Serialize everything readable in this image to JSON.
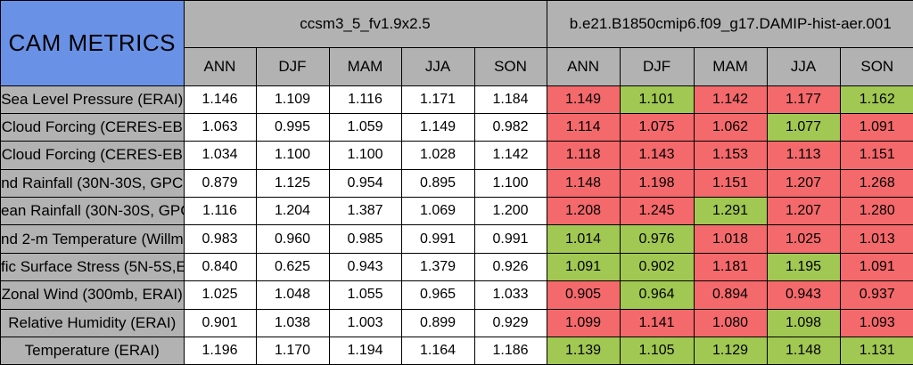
{
  "colors": {
    "title_background": "#6991E6",
    "header_background": "#B2B2B2",
    "label_background": "#B2B2B2",
    "red_cell": "#F4696B",
    "green_cell": "#A1C853",
    "plain_cell": "#FFFFFF",
    "border": "#000000"
  },
  "chart_data": {
    "type": "table",
    "title": "CAM METRICS",
    "column_groups": [
      {
        "name": "ccsm3_5_fv1.9x2.5",
        "seasons": [
          "ANN",
          "DJF",
          "MAM",
          "JJA",
          "SON"
        ],
        "cell_style": "plain"
      },
      {
        "name": "b.e21.B1850cmip6.f09_g17.DAMIP-hist-aer.001",
        "seasons": [
          "ANN",
          "DJF",
          "MAM",
          "JJA",
          "SON"
        ],
        "cell_style": "colored"
      }
    ],
    "value_precision": 3,
    "rows": [
      {
        "label": "Sea Level Pressure (ERAI)",
        "values": [
          [
            1.146,
            1.109,
            1.116,
            1.171,
            1.184
          ],
          [
            1.149,
            1.101,
            1.142,
            1.177,
            1.162
          ]
        ],
        "cell_colors": [
          [
            "white",
            "white",
            "white",
            "white",
            "white"
          ],
          [
            "red",
            "green",
            "red",
            "red",
            "green"
          ]
        ]
      },
      {
        "label": "Cloud Forcing (CERES-EB",
        "values": [
          [
            1.063,
            0.995,
            1.059,
            1.149,
            0.982
          ],
          [
            1.114,
            1.075,
            1.062,
            1.077,
            1.091
          ]
        ],
        "cell_colors": [
          [
            "white",
            "white",
            "white",
            "white",
            "white"
          ],
          [
            "red",
            "red",
            "red",
            "green",
            "red"
          ]
        ]
      },
      {
        "label": "Cloud Forcing (CERES-EB",
        "values": [
          [
            1.034,
            1.1,
            1.1,
            1.028,
            1.142
          ],
          [
            1.118,
            1.143,
            1.153,
            1.113,
            1.151
          ]
        ],
        "cell_colors": [
          [
            "white",
            "white",
            "white",
            "white",
            "white"
          ],
          [
            "red",
            "red",
            "red",
            "red",
            "red"
          ]
        ]
      },
      {
        "label": "nd Rainfall (30N-30S, GPC",
        "values": [
          [
            0.879,
            1.125,
            0.954,
            0.895,
            1.1
          ],
          [
            1.148,
            1.198,
            1.151,
            1.207,
            1.268
          ]
        ],
        "cell_colors": [
          [
            "white",
            "white",
            "white",
            "white",
            "white"
          ],
          [
            "red",
            "red",
            "red",
            "red",
            "red"
          ]
        ]
      },
      {
        "label": "ean Rainfall (30N-30S, GPC",
        "values": [
          [
            1.116,
            1.204,
            1.387,
            1.069,
            1.2
          ],
          [
            1.208,
            1.245,
            1.291,
            1.207,
            1.28
          ]
        ],
        "cell_colors": [
          [
            "white",
            "white",
            "white",
            "white",
            "white"
          ],
          [
            "red",
            "red",
            "green",
            "red",
            "red"
          ]
        ]
      },
      {
        "label": "nd 2-m Temperature (Willmo",
        "values": [
          [
            0.983,
            0.96,
            0.985,
            0.991,
            0.991
          ],
          [
            1.014,
            0.976,
            1.018,
            1.025,
            1.013
          ]
        ],
        "cell_colors": [
          [
            "white",
            "white",
            "white",
            "white",
            "white"
          ],
          [
            "green",
            "green",
            "red",
            "red",
            "red"
          ]
        ]
      },
      {
        "label": "fic Surface Stress (5N-5S,E",
        "values": [
          [
            0.84,
            0.625,
            0.943,
            1.379,
            0.926
          ],
          [
            1.091,
            0.902,
            1.181,
            1.195,
            1.091
          ]
        ],
        "cell_colors": [
          [
            "white",
            "white",
            "white",
            "white",
            "white"
          ],
          [
            "green",
            "green",
            "red",
            "green",
            "red"
          ]
        ]
      },
      {
        "label": "Zonal Wind (300mb, ERAI)",
        "values": [
          [
            1.025,
            1.048,
            1.055,
            0.965,
            1.033
          ],
          [
            0.905,
            0.964,
            0.894,
            0.943,
            0.937
          ]
        ],
        "cell_colors": [
          [
            "white",
            "white",
            "white",
            "white",
            "white"
          ],
          [
            "red",
            "green",
            "red",
            "red",
            "red"
          ]
        ]
      },
      {
        "label": "Relative Humidity (ERAI)",
        "values": [
          [
            0.901,
            1.038,
            1.003,
            0.899,
            0.929
          ],
          [
            1.099,
            1.141,
            1.08,
            1.098,
            1.093
          ]
        ],
        "cell_colors": [
          [
            "white",
            "white",
            "white",
            "white",
            "white"
          ],
          [
            "red",
            "red",
            "red",
            "green",
            "red"
          ]
        ]
      },
      {
        "label": "Temperature (ERAI)",
        "values": [
          [
            1.196,
            1.17,
            1.194,
            1.164,
            1.186
          ],
          [
            1.139,
            1.105,
            1.129,
            1.148,
            1.131
          ]
        ],
        "cell_colors": [
          [
            "white",
            "white",
            "white",
            "white",
            "white"
          ],
          [
            "green",
            "green",
            "green",
            "green",
            "green"
          ]
        ]
      }
    ]
  }
}
